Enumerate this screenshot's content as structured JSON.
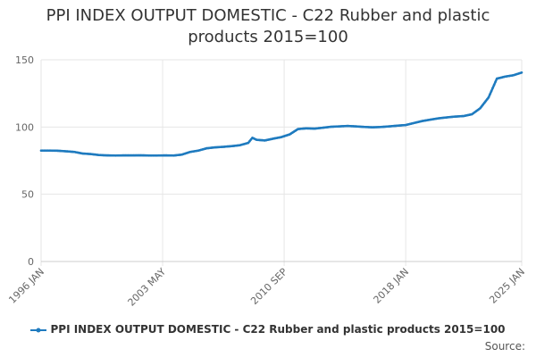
{
  "title": "PPI INDEX OUTPUT DOMESTIC - C22 Rubber and plastic products 2015=100",
  "source_label": "Source:",
  "colors": {
    "series": "#1f7bbf",
    "grid": "#e6e6e6",
    "axis_text": "#666666"
  },
  "chart_data": {
    "type": "line",
    "title": "PPI INDEX OUTPUT DOMESTIC - C22 Rubber and plastic products 2015=100",
    "xlabel": "",
    "ylabel": "",
    "ylim": [
      0,
      150
    ],
    "yticks": [
      0,
      50,
      100,
      150
    ],
    "xlim": [
      "1996-01",
      "2025-01"
    ],
    "xticks": [
      "1996 JAN",
      "2003 MAY",
      "2010 SEP",
      "2018 JAN",
      "2025 JAN"
    ],
    "grid": true,
    "legend": "bottom",
    "series": [
      {
        "name": "PPI INDEX OUTPUT DOMESTIC - C22 Rubber and plastic products 2015=100",
        "x": [
          "1996-01",
          "1996-07",
          "1997-01",
          "1997-07",
          "1998-01",
          "1998-07",
          "1999-01",
          "1999-07",
          "2000-01",
          "2000-07",
          "2001-01",
          "2001-07",
          "2002-01",
          "2002-07",
          "2003-01",
          "2003-07",
          "2004-01",
          "2004-07",
          "2005-01",
          "2005-07",
          "2006-01",
          "2006-07",
          "2007-01",
          "2007-07",
          "2008-01",
          "2008-07",
          "2008-10",
          "2009-01",
          "2009-07",
          "2010-01",
          "2010-07",
          "2011-01",
          "2011-07",
          "2012-01",
          "2012-07",
          "2013-01",
          "2013-07",
          "2014-01",
          "2014-07",
          "2015-01",
          "2015-07",
          "2016-01",
          "2016-07",
          "2017-01",
          "2017-07",
          "2018-01",
          "2018-07",
          "2019-01",
          "2019-07",
          "2020-01",
          "2020-07",
          "2021-01",
          "2021-07",
          "2022-01",
          "2022-07",
          "2023-01",
          "2023-07",
          "2024-01",
          "2024-07",
          "2025-01"
        ],
        "values": [
          82.5,
          82.5,
          82.4,
          82.0,
          81.5,
          80.3,
          79.9,
          79.2,
          78.9,
          78.8,
          78.9,
          78.9,
          79.0,
          78.8,
          78.8,
          78.9,
          78.8,
          79.5,
          81.5,
          82.5,
          84.2,
          84.9,
          85.3,
          85.8,
          86.5,
          88.2,
          92.0,
          90.5,
          90.0,
          91.3,
          92.5,
          94.5,
          98.5,
          99.0,
          98.8,
          99.5,
          100.2,
          100.5,
          100.8,
          100.5,
          100.1,
          99.8,
          100.0,
          100.5,
          101.0,
          101.5,
          103.0,
          104.5,
          105.5,
          106.5,
          107.2,
          107.8,
          108.2,
          109.5,
          114.0,
          122.0,
          136.0,
          137.5,
          138.5,
          140.5
        ]
      }
    ]
  }
}
